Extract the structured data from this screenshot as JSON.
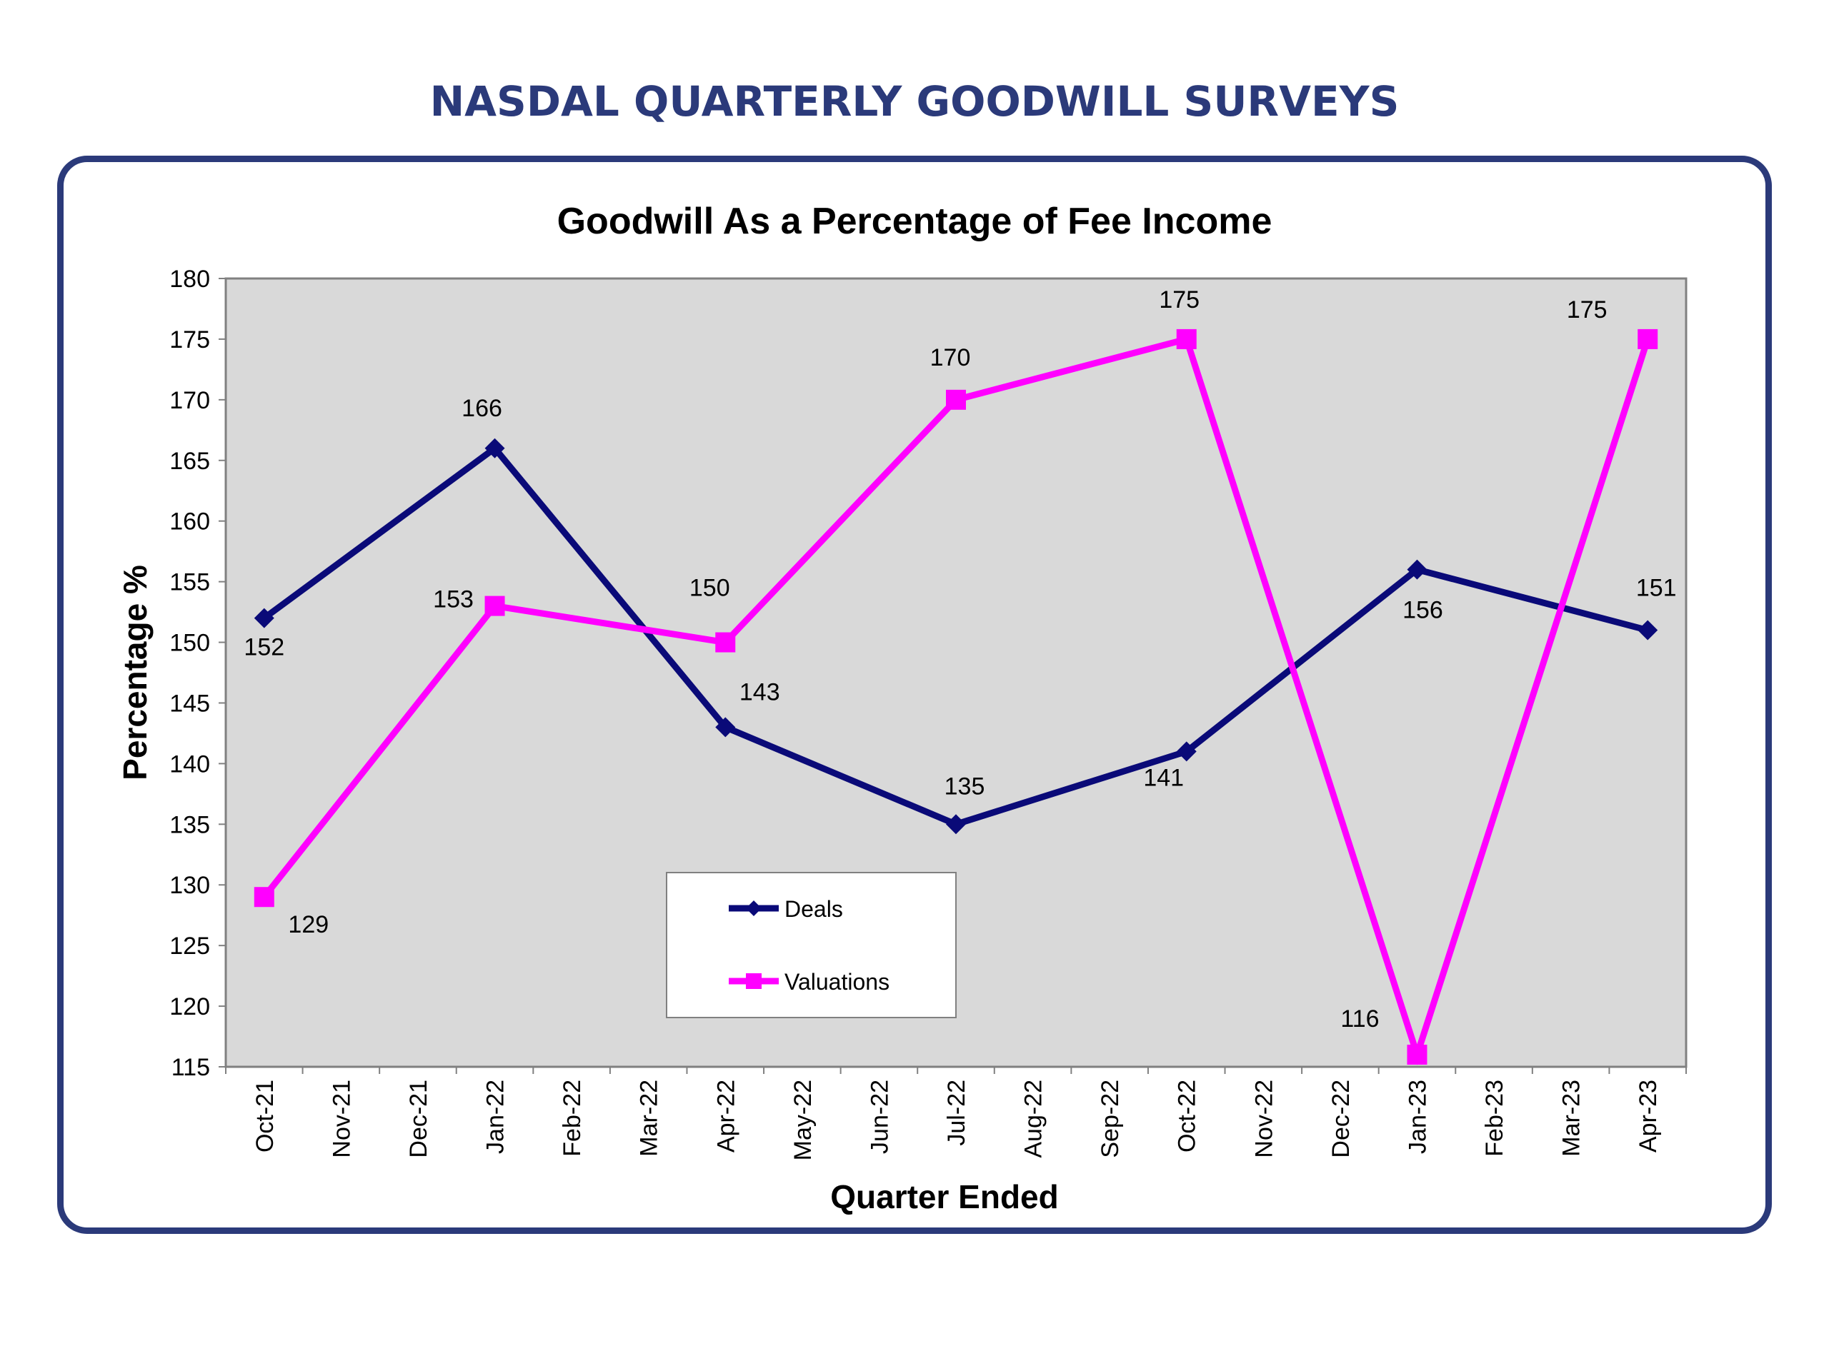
{
  "page": {
    "title": "NASDAL QUARTERLY GOODWILL SURVEYS"
  },
  "colors": {
    "title": "#2B3A7A",
    "frame_border": "#2B3A7A",
    "plot_background": "#D9D9D9",
    "deals": "#0A0A78",
    "valuations": "#FF00FF"
  },
  "chart_data": {
    "type": "line",
    "title": "Goodwill As a Percentage of Fee Income",
    "xlabel": "Quarter Ended",
    "ylabel": "Percentage %",
    "ylim": [
      115,
      180
    ],
    "yticks": [
      115,
      120,
      125,
      130,
      135,
      140,
      145,
      150,
      155,
      160,
      165,
      170,
      175,
      180
    ],
    "categories": [
      "Oct-21",
      "Nov-21",
      "Dec-21",
      "Jan-22",
      "Feb-22",
      "Mar-22",
      "Apr-22",
      "May-22",
      "Jun-22",
      "Jul-22",
      "Aug-22",
      "Sep-22",
      "Oct-22",
      "Nov-22",
      "Dec-22",
      "Jan-23",
      "Feb-23",
      "Mar-23",
      "Apr-23"
    ],
    "grid": false,
    "legend_position": "bottom-center",
    "series": [
      {
        "name": "Deals",
        "marker": "diamond",
        "color": "#0A0A78",
        "points": [
          {
            "x": "Oct-21",
            "y": 152
          },
          {
            "x": "Jan-22",
            "y": 166
          },
          {
            "x": "Apr-22",
            "y": 143
          },
          {
            "x": "Jul-22",
            "y": 135
          },
          {
            "x": "Oct-22",
            "y": 141
          },
          {
            "x": "Jan-23",
            "y": 156
          },
          {
            "x": "Apr-23",
            "y": 151
          }
        ]
      },
      {
        "name": "Valuations",
        "marker": "square",
        "color": "#FF00FF",
        "points": [
          {
            "x": "Oct-21",
            "y": 129
          },
          {
            "x": "Jan-22",
            "y": 153
          },
          {
            "x": "Apr-22",
            "y": 150
          },
          {
            "x": "Jul-22",
            "y": 170
          },
          {
            "x": "Oct-22",
            "y": 175
          },
          {
            "x": "Jan-23",
            "y": 116
          },
          {
            "x": "Apr-23",
            "y": 175
          }
        ]
      }
    ]
  }
}
